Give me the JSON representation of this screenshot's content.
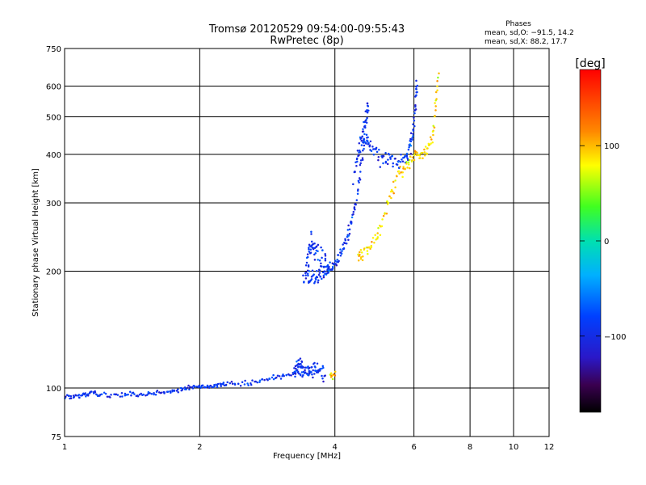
{
  "chart_data": {
    "type": "scatter",
    "title": "Tromsø 20120529 09:54:00-09:55:43",
    "subtitle": "RwPretec (8p)",
    "xlabel": "Frequency [MHz]",
    "ylabel": "Stationary phase Virtual Height [km]",
    "x_scale": "log",
    "y_scale": "log",
    "xlim": [
      1,
      12
    ],
    "ylim": [
      75,
      750
    ],
    "grid": true,
    "x_ticks": [
      "1",
      "2",
      "4",
      "6",
      "8",
      "10",
      "12"
    ],
    "y_ticks": [
      "75",
      "100",
      "200",
      "300",
      "400",
      "500",
      "600",
      "750"
    ],
    "phases_box": {
      "title": "Phases",
      "line1": "mean, sd,O: −91.5, 14.2",
      "line2": "mean, sd,X:  88.2, 17.7"
    },
    "colorbar": {
      "label": "[deg]",
      "range": [
        -180,
        180
      ],
      "ticks": [
        "100",
        "0",
        "−100"
      ],
      "tick_values": [
        100,
        0,
        -100
      ]
    },
    "series": [
      {
        "mode": "O",
        "phase_mean": -91.5,
        "traces": [
          {
            "f": [
              1.0,
              1.05,
              1.1,
              1.15,
              1.2,
              1.3,
              1.4,
              1.5,
              1.6,
              1.7,
              1.8,
              1.9,
              2.0,
              2.1,
              2.2,
              2.3,
              2.5,
              2.7,
              2.9,
              3.1,
              3.3,
              3.5,
              3.7
            ],
            "h": [
              95,
              95,
              96,
              97,
              96,
              96,
              96,
              96,
              97,
              98,
              99,
              100,
              101,
              101,
              102,
              102,
              103,
              104,
              106,
              108,
              109,
              109,
              110
            ],
            "spread": 0.012
          },
          {
            "f": [
              3.25,
              3.3,
              3.35,
              3.4,
              3.5,
              3.6,
              3.7,
              3.8
            ],
            "h": [
              108,
              114,
              116,
              112,
              110,
              114,
              110,
              108
            ],
            "spread": 0.04
          },
          {
            "f": [
              3.4,
              3.5,
              3.6,
              3.7,
              3.8,
              3.9,
              4.0,
              4.1,
              4.2,
              4.3,
              4.4,
              4.5,
              4.6,
              4.7
            ],
            "h": [
              195,
              192,
              192,
              195,
              200,
              205,
              210,
              220,
              235,
              255,
              280,
              320,
              400,
              500
            ],
            "spread": 0.035
          },
          {
            "f": [
              3.45,
              3.5,
              3.55,
              3.6,
              3.7,
              3.8,
              3.9
            ],
            "h": [
              200,
              220,
              240,
              230,
              215,
              210,
              205
            ],
            "spread": 0.08
          },
          {
            "f": [
              4.6,
              4.7,
              4.8,
              5.0,
              5.2,
              5.4,
              5.6,
              5.8,
              5.9,
              6.0,
              6.05,
              6.1
            ],
            "h": [
              420,
              440,
              420,
              400,
              390,
              385,
              385,
              395,
              420,
              470,
              550,
              620
            ],
            "spread": 0.04
          },
          {
            "f": [
              4.4,
              4.5,
              4.6,
              4.7,
              4.75
            ],
            "h": [
              350,
              400,
              450,
              500,
              540
            ],
            "spread": 0.04
          }
        ]
      },
      {
        "mode": "X",
        "phase_mean": 88.2,
        "traces": [
          {
            "f": [
              4.5,
              4.6,
              4.8,
              5.0,
              5.2,
              5.4,
              5.6,
              5.8,
              6.0,
              6.2,
              6.4,
              6.6,
              6.7,
              6.8
            ],
            "h": [
              220,
              222,
              230,
              250,
              290,
              330,
              360,
              380,
              395,
              400,
              410,
              440,
              520,
              640
            ],
            "spread": 0.03
          },
          {
            "f": [
              3.9,
              4.0
            ],
            "h": [
              107,
              109
            ],
            "spread": 0.02
          }
        ]
      }
    ]
  }
}
